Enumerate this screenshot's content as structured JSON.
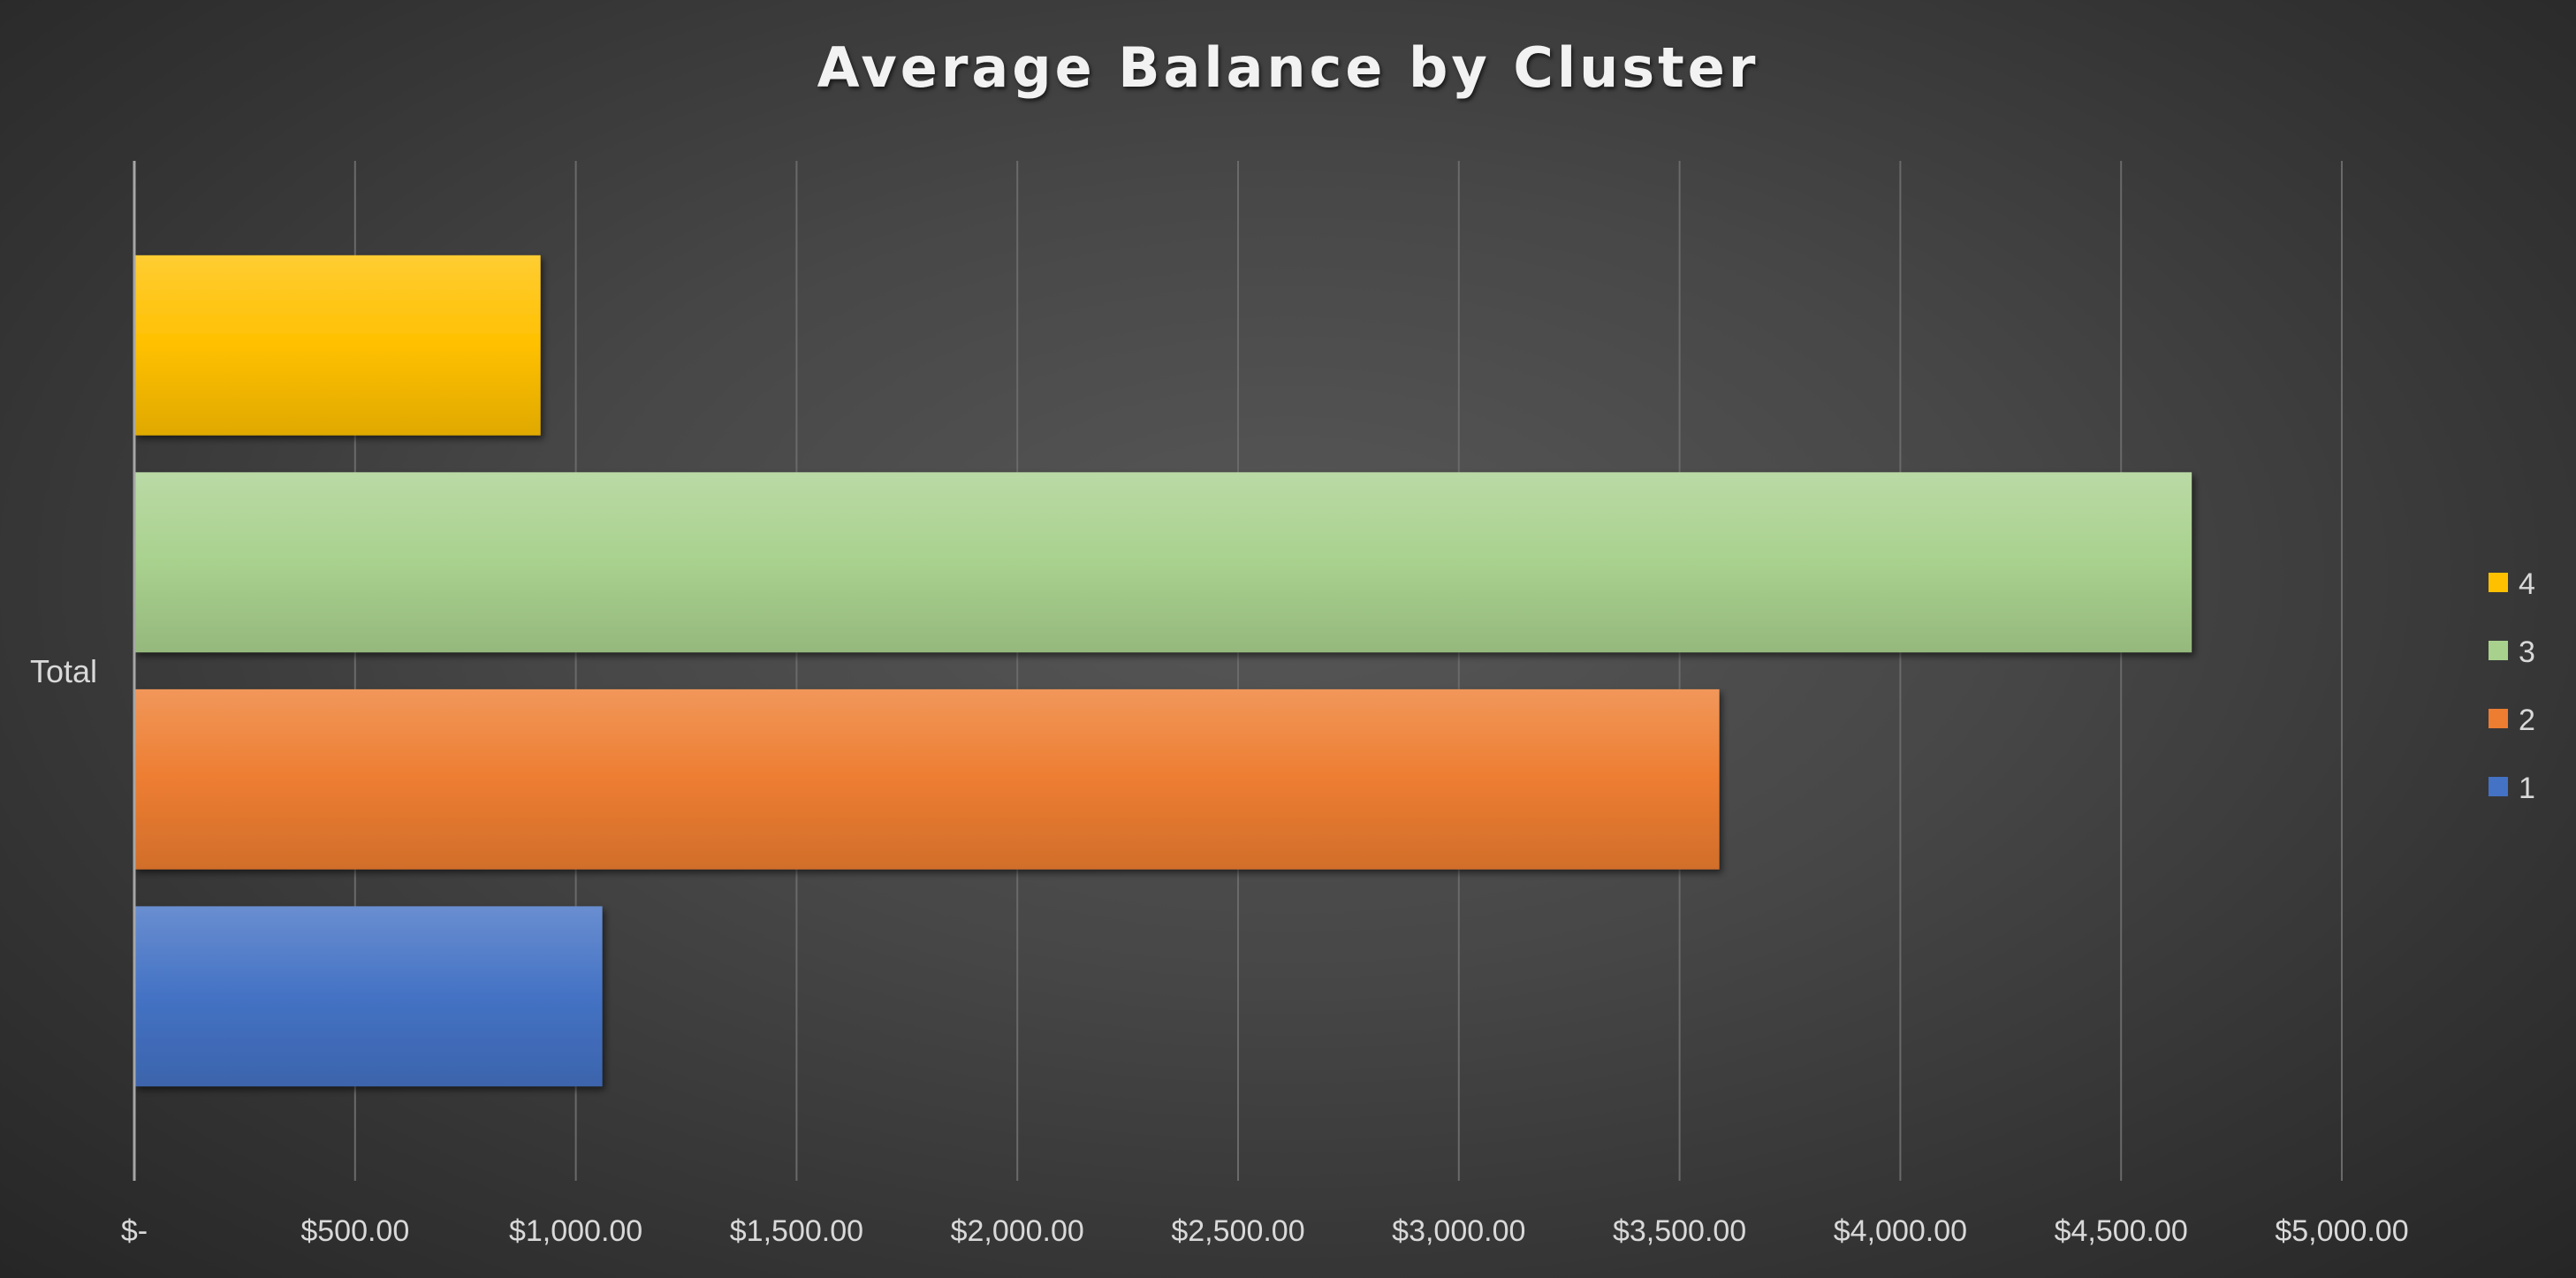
{
  "chart_data": {
    "type": "bar",
    "orientation": "horizontal",
    "title": "Average Balance by Cluster",
    "categories": [
      "Total"
    ],
    "series": [
      {
        "name": "1",
        "values": [
          1060
        ],
        "color": "#4472C4"
      },
      {
        "name": "2",
        "values": [
          3590
        ],
        "color": "#ED7D31"
      },
      {
        "name": "3",
        "values": [
          4660
        ],
        "color": "#A9D18E"
      },
      {
        "name": "4",
        "values": [
          920
        ],
        "color": "#FFC000"
      }
    ],
    "xlim": [
      0,
      5000
    ],
    "x_ticks": [
      0,
      500,
      1000,
      1500,
      2000,
      2500,
      3000,
      3500,
      4000,
      4500,
      5000
    ],
    "x_tick_labels": [
      "$-",
      "$500.00",
      "$1,000.00",
      "$1,500.00",
      "$2,000.00",
      "$2,500.00",
      "$3,000.00",
      "$3,500.00",
      "$4,000.00",
      "$4,500.00",
      "$5,000.00"
    ],
    "grid": true,
    "legend_position": "right",
    "legend_order": [
      "4",
      "3",
      "2",
      "1"
    ]
  }
}
